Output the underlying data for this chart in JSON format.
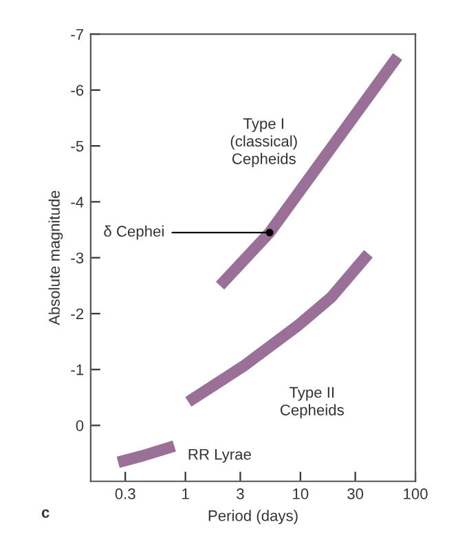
{
  "chart_data": {
    "type": "line",
    "xlabel": "Period (days)",
    "ylabel": "Absolute magnitude",
    "log": "x",
    "xlim": [
      0.15,
      100
    ],
    "xticks": [
      0.3,
      1,
      3,
      10,
      30,
      100
    ],
    "ylim": [
      1,
      -7
    ],
    "yticks": [
      -7,
      -6,
      -5,
      -4,
      -3,
      -2,
      -1,
      0
    ],
    "grid": false,
    "legend": false,
    "marker": "none",
    "line_style": "solid",
    "series": [
      {
        "name": "Type I\n(classical)\nCepheids",
        "color": "#9a7098",
        "x": [
          2,
          5.4,
          70
        ],
        "values": [
          -2.5,
          -3.45,
          -6.6
        ]
      },
      {
        "name": "Type II\nCepheids",
        "color": "#9a7098",
        "x": [
          1.06,
          3.2,
          9.7,
          18.5,
          39
        ],
        "values": [
          -0.42,
          -1.06,
          -1.8,
          -2.29,
          -3.07
        ]
      },
      {
        "name": "RR Lyrae",
        "color": "#9a7098",
        "x": [
          0.26,
          0.43,
          0.8
        ],
        "values": [
          0.66,
          0.54,
          0.37
        ]
      }
    ],
    "annotations": [
      {
        "text": "δ Cephei",
        "x": 5.4,
        "y": -3.45
      },
      "c"
    ]
  }
}
